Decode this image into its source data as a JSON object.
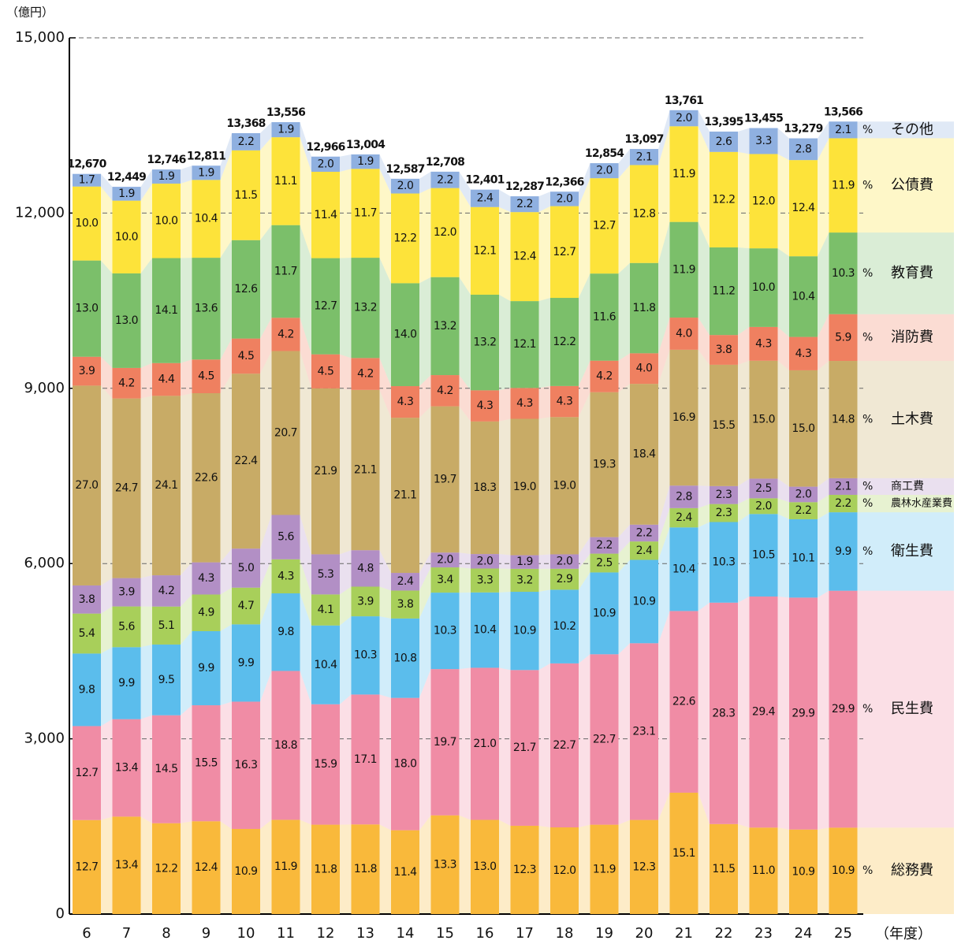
{
  "chart_data": {
    "type": "stacked_percent_bar",
    "y_unit": "（億円）",
    "x_unit": "（年度）",
    "percent_sign": "%",
    "categories": [
      "6",
      "7",
      "8",
      "9",
      "10",
      "11",
      "12",
      "13",
      "14",
      "15",
      "16",
      "17",
      "18",
      "19",
      "20",
      "21",
      "22",
      "23",
      "24",
      "25"
    ],
    "totals": [
      12670,
      12449,
      12746,
      12811,
      13368,
      13556,
      12966,
      13004,
      12587,
      12708,
      12401,
      12287,
      12366,
      12854,
      13097,
      13761,
      13395,
      13455,
      13279,
      13566
    ],
    "totals_labels": [
      "12,670",
      "12,449",
      "12,746",
      "12,811",
      "13,368",
      "13,556",
      "12,966",
      "13,004",
      "12,587",
      "12,708",
      "12,401",
      "12,287",
      "12,366",
      "12,854",
      "13,097",
      "13,761",
      "13,395",
      "13,455",
      "13,279",
      "13,566"
    ],
    "series": [
      {
        "name": "総務費",
        "color": "#f9b93b",
        "values": [
          12.7,
          13.4,
          12.2,
          12.4,
          10.9,
          11.9,
          11.8,
          11.8,
          11.4,
          13.3,
          13.0,
          12.3,
          12.0,
          11.9,
          12.3,
          15.1,
          11.5,
          11.0,
          10.9,
          10.9
        ],
        "value_labels": [
          "12.7",
          "13.4",
          "12.2",
          "12.4",
          "10.9",
          "11.9",
          "11.8",
          "11.8",
          "11.4",
          "13.3",
          "13.0",
          "12.3",
          "12.0",
          "11.9",
          "12.3",
          "15.1",
          "11.5",
          "11.0",
          "10.9",
          "10.9"
        ]
      },
      {
        "name": "民生費",
        "color": "#f08ca5",
        "values": [
          12.7,
          13.4,
          14.5,
          15.5,
          16.3,
          18.8,
          15.9,
          17.1,
          18.0,
          19.7,
          21.0,
          21.7,
          22.7,
          22.7,
          23.1,
          22.6,
          28.3,
          29.4,
          29.9,
          29.9
        ],
        "value_labels": [
          "12.7",
          "13.4",
          "14.5",
          "15.5",
          "16.3",
          "18.8",
          "15.9",
          "17.1",
          "18.0",
          "19.7",
          "21.0",
          "21.7",
          "22.7",
          "22.7",
          "23.1",
          "22.6",
          "28.3",
          "29.4",
          "29.9",
          "29.9"
        ]
      },
      {
        "name": "衛生費",
        "color": "#5bbdec",
        "values": [
          9.8,
          9.9,
          9.5,
          9.9,
          9.9,
          9.8,
          10.4,
          10.3,
          10.8,
          10.3,
          10.4,
          10.9,
          10.2,
          10.9,
          10.9,
          10.4,
          10.3,
          10.5,
          10.1,
          9.9
        ],
        "value_labels": [
          "9.8",
          "9.9",
          "9.5",
          "9.9",
          "9.9",
          "9.8",
          "10.4",
          "10.3",
          "10.8",
          "10.3",
          "10.4",
          "10.9",
          "10.2",
          "10.9",
          "10.9",
          "10.4",
          "10.3",
          "10.5",
          "10.1",
          "9.9"
        ]
      },
      {
        "name": "農林水産業費",
        "color": "#a8cf5a",
        "values": [
          5.4,
          5.6,
          5.1,
          4.9,
          4.7,
          4.3,
          4.1,
          3.9,
          3.8,
          3.4,
          3.3,
          3.2,
          2.9,
          2.5,
          2.4,
          2.4,
          2.3,
          2.0,
          2.2,
          2.2
        ],
        "value_labels": [
          "5.4",
          "5.6",
          "5.1",
          "4.9",
          "4.7",
          "4.3",
          "4.1",
          "3.9",
          "3.8",
          "3.4",
          "3.3",
          "3.2",
          "2.9",
          "2.5",
          "2.4",
          "2.4",
          "2.3",
          "2.0",
          "2.2",
          "2.2"
        ]
      },
      {
        "name": "商工費",
        "color": "#b28fc5",
        "values": [
          3.8,
          3.9,
          4.2,
          4.3,
          5.0,
          5.6,
          5.3,
          4.8,
          2.4,
          2.0,
          2.0,
          1.9,
          2.0,
          2.2,
          2.2,
          2.8,
          2.3,
          2.5,
          2.0,
          2.1
        ],
        "value_labels": [
          "3.8",
          "3.9",
          "4.2",
          "4.3",
          "5.0",
          "5.6",
          "5.3",
          "4.8",
          "2.4",
          "2.0",
          "2.0",
          "1.9",
          "2.0",
          "2.2",
          "2.2",
          "2.8",
          "2.3",
          "2.5",
          "2.0",
          "2.1"
        ]
      },
      {
        "name": "土木費",
        "color": "#c8ab66",
        "values": [
          27.0,
          24.7,
          24.1,
          22.6,
          22.4,
          20.7,
          21.9,
          21.1,
          21.1,
          19.7,
          18.3,
          19.0,
          19.0,
          19.3,
          18.4,
          16.9,
          15.5,
          15.0,
          15.0,
          14.8
        ],
        "value_labels": [
          "27.0",
          "24.7",
          "24.1",
          "22.6",
          "22.4",
          "20.7",
          "21.9",
          "21.1",
          "21.1",
          "19.7",
          "18.3",
          "19.0",
          "19.0",
          "19.3",
          "18.4",
          "16.9",
          "15.5",
          "15.0",
          "15.0",
          "14.8"
        ]
      },
      {
        "name": "消防費",
        "color": "#ef8060",
        "values": [
          3.9,
          4.2,
          4.4,
          4.5,
          4.5,
          4.2,
          4.5,
          4.2,
          4.3,
          4.2,
          4.3,
          4.3,
          4.3,
          4.2,
          4.0,
          4.0,
          3.8,
          4.3,
          4.3,
          5.9
        ],
        "value_labels": [
          "3.9",
          "4.2",
          "4.4",
          "4.5",
          "4.5",
          "4.2",
          "4.5",
          "4.2",
          "4.3",
          "4.2",
          "4.3",
          "4.3",
          "4.3",
          "4.2",
          "4.0",
          "4.0",
          "3.8",
          "4.3",
          "4.3",
          "5.9"
        ]
      },
      {
        "name": "教育費",
        "color": "#7bbf6a",
        "values": [
          13.0,
          13.0,
          14.1,
          13.6,
          12.6,
          11.7,
          12.7,
          13.2,
          14.0,
          13.2,
          13.2,
          12.1,
          12.2,
          11.6,
          11.8,
          11.9,
          11.2,
          10.0,
          10.4,
          10.3
        ],
        "value_labels": [
          "13.0",
          "13.0",
          "14.1",
          "13.6",
          "12.6",
          "11.7",
          "12.7",
          "13.2",
          "14.0",
          "13.2",
          "13.2",
          "12.1",
          "12.2",
          "11.6",
          "11.8",
          "11.9",
          "11.2",
          "10.0",
          "10.4",
          "10.3"
        ]
      },
      {
        "name": "公債費",
        "color": "#fde33a",
        "values": [
          10.0,
          10.0,
          10.0,
          10.4,
          11.5,
          11.1,
          11.4,
          11.7,
          12.2,
          12.0,
          12.1,
          12.4,
          12.7,
          12.7,
          12.8,
          11.9,
          12.2,
          12.0,
          12.4,
          11.9
        ],
        "value_labels": [
          "10.0",
          "10.0",
          "10.0",
          "10.4",
          "11.5",
          "11.1",
          "11.4",
          "11.7",
          "12.2",
          "12.0",
          "12.1",
          "12.4",
          "12.7",
          "12.7",
          "12.8",
          "11.9",
          "12.2",
          "12.0",
          "12.4",
          "11.9"
        ]
      },
      {
        "name": "その他",
        "color": "#8fb0e0",
        "values": [
          1.7,
          1.9,
          1.9,
          1.9,
          2.2,
          1.9,
          2.0,
          1.9,
          2.0,
          2.2,
          2.4,
          2.2,
          2.0,
          2.0,
          2.1,
          2.0,
          2.6,
          3.3,
          2.8,
          2.1
        ],
        "value_labels": [
          "1.7",
          "1.9",
          "1.9",
          "1.9",
          "2.2",
          "1.9",
          "2.0",
          "1.9",
          "2.0",
          "2.2",
          "2.4",
          "2.2",
          "2.0",
          "2.0",
          "2.1",
          "2.0",
          "2.6",
          "3.3",
          "2.8",
          "2.1"
        ]
      }
    ],
    "ylim": [
      0,
      15000
    ],
    "yticks": [
      0,
      {
        "value": 3000,
        "label": "3,000"
      },
      {
        "value": 6000,
        "label": "6,000"
      },
      {
        "value": 9000,
        "label": "9,000"
      },
      {
        "value": 12000,
        "label": "12,000"
      },
      {
        "value": 15000,
        "label": "15,000"
      }
    ],
    "grid": true
  }
}
